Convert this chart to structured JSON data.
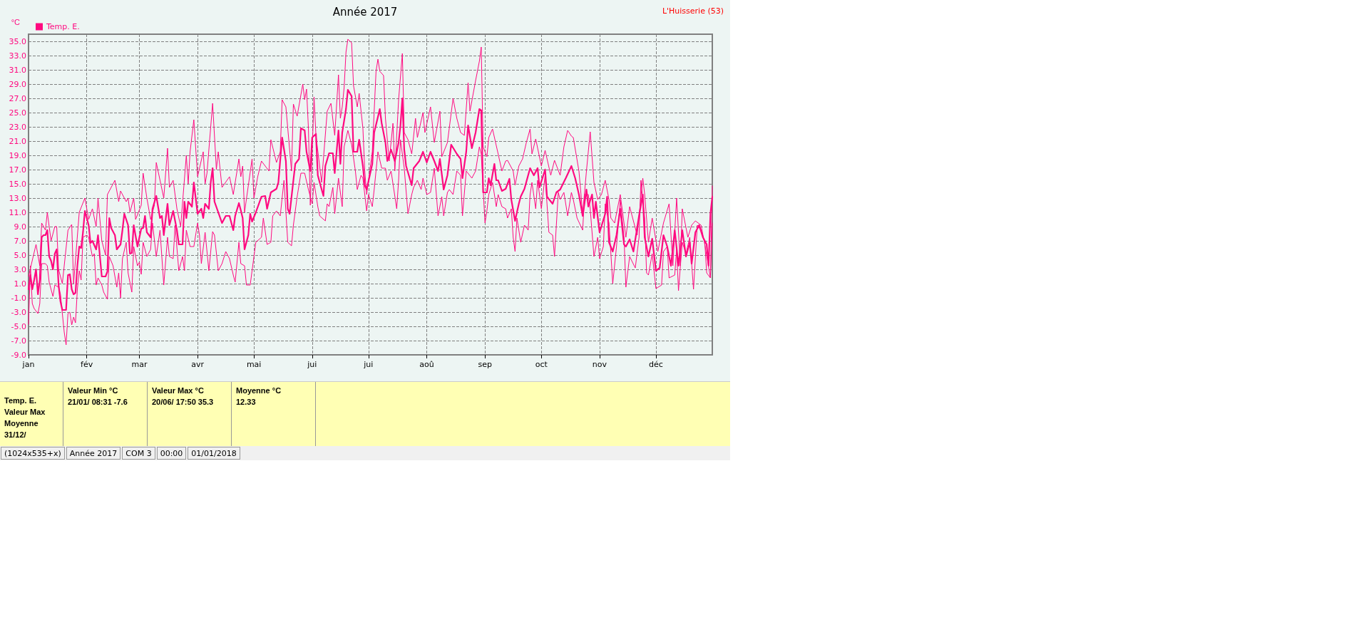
{
  "chart_data": {
    "type": "line",
    "title": "Année 2017",
    "subtitle": "L'Huisserie (53)",
    "ylabel": "°C",
    "xlim": [
      "--01-01",
      "--12-31"
    ],
    "xticks": [
      {
        "value": "--01-01",
        "label": "jan"
      },
      {
        "value": "--02-01",
        "label": "fév"
      },
      {
        "value": "--03-01",
        "label": "mar"
      },
      {
        "value": "--04-01",
        "label": "avr"
      },
      {
        "value": "--05-01",
        "label": "mai"
      },
      {
        "value": "--06-01",
        "label": "jui"
      },
      {
        "value": "--07-01",
        "label": "jui"
      },
      {
        "value": "--08-01",
        "label": "aoû"
      },
      {
        "value": "--09-01",
        "label": "sep"
      },
      {
        "value": "--10-01",
        "label": "oct"
      },
      {
        "value": "--11-01",
        "label": "nov"
      },
      {
        "value": "--12-01",
        "label": "déc"
      }
    ],
    "ylim": [
      -9,
      36
    ],
    "yticks": [
      {
        "value": -9,
        "label": "-9.0"
      },
      {
        "value": -7,
        "label": "-7.0"
      },
      {
        "value": -5,
        "label": "-5.0"
      },
      {
        "value": -3,
        "label": "-3.0"
      },
      {
        "value": -1,
        "label": "-1.0"
      },
      {
        "value": 1,
        "label": "1.0"
      },
      {
        "value": 3,
        "label": "3.0"
      },
      {
        "value": 5,
        "label": "5.0"
      },
      {
        "value": 7,
        "label": "7.0"
      },
      {
        "value": 9,
        "label": "9.0"
      },
      {
        "value": 11,
        "label": "11.0"
      },
      {
        "value": 13,
        "label": "13.0"
      },
      {
        "value": 15,
        "label": "15.0"
      },
      {
        "value": 17,
        "label": "17.0"
      },
      {
        "value": 19,
        "label": "19.0"
      },
      {
        "value": 21,
        "label": "21.0"
      },
      {
        "value": 23,
        "label": "23.0"
      },
      {
        "value": 25,
        "label": "25.0"
      },
      {
        "value": 27,
        "label": "27.0"
      },
      {
        "value": 29,
        "label": "29.0"
      },
      {
        "value": 31,
        "label": "31.0"
      },
      {
        "value": 33,
        "label": "33.0"
      },
      {
        "value": 35,
        "label": "35.0"
      }
    ],
    "grid": true,
    "legend": "top left",
    "marker": "none",
    "line_style": "solid",
    "series": [
      {
        "color": "#ff0a80",
        "x": [
          "--01-01",
          "--01-05",
          "--01-07",
          "--01-08",
          "--01-10",
          "--01-11",
          "--01-13",
          "--01-15",
          "--01-16",
          "--01-17",
          "--01-19",
          "--01-22",
          "--01-24",
          "--01-25",
          "--01-28",
          "--01-31",
          "--02-02",
          "--02-04",
          "--02-06",
          "--02-07",
          "--02-09",
          "--02-11",
          "--02-12",
          "--02-16",
          "--02-18",
          "--02-19",
          "--02-22",
          "--02-23",
          "--02-24",
          "--02-26",
          "--02-27",
          "--03-02",
          "--03-03",
          "--03-05",
          "--03-07",
          "--03-09",
          "--03-10",
          "--03-14",
          "--03-16",
          "--03-17",
          "--03-19",
          "--03-21",
          "--03-23",
          "--03-26",
          "--03-27",
          "--03-28",
          "--03-30",
          "--04-01",
          "--04-04",
          "--04-05",
          "--04-06",
          "--04-09",
          "--04-11",
          "--04-12",
          "--04-14",
          "--04-18",
          "--04-20",
          "--04-23",
          "--04-24",
          "--04-25",
          "--04-26",
          "--04-30",
          "--05-01",
          "--05-03",
          "--05-05",
          "--05-09",
          "--05-10",
          "--05-13",
          "--05-15",
          "--05-16",
          "--05-18",
          "--05-21",
          "--05-22",
          "--05-24",
          "--05-27",
          "--05-28",
          "--05-29",
          "--05-30",
          "--05-31",
          "--06-02",
          "--06-03",
          "--06-06",
          "--06-09",
          "--06-11",
          "--06-13",
          "--06-15",
          "--06-16",
          "--06-17",
          "--06-18",
          "--06-19",
          "--06-20",
          "--06-22",
          "--06-23",
          "--06-25",
          "--06-26",
          "--06-28",
          "--06-29",
          "--06-30",
          "--07-03",
          "--07-05",
          "--07-06",
          "--07-07",
          "--07-09",
          "--07-10",
          "--07-12",
          "--07-14",
          "--07-15",
          "--07-17",
          "--07-19",
          "--07-20",
          "--07-22",
          "--07-24",
          "--07-26",
          "--07-27",
          "--07-30",
          "--07-31",
          "--08-03",
          "--08-05",
          "--08-08",
          "--08-09",
          "--08-12",
          "--08-15",
          "--08-17",
          "--08-19",
          "--08-21",
          "--08-23",
          "--08-24",
          "--08-27",
          "--08-29",
          "--08-30",
          "--08-31",
          "--09-02",
          "--09-03",
          "--09-05",
          "--09-08",
          "--09-10",
          "--09-12",
          "--09-13",
          "--09-16",
          "--09-17",
          "--09-19",
          "--09-21",
          "--09-23",
          "--09-25",
          "--09-26",
          "--09-28",
          "--10-01",
          "--10-03",
          "--10-06",
          "--10-08",
          "--10-11",
          "--10-13",
          "--10-15",
          "--10-17",
          "--10-18",
          "--10-21",
          "--10-23",
          "--10-25",
          "--10-27",
          "--10-29",
          "--10-31",
          "--11-02",
          "--11-04",
          "--11-06",
          "--11-07",
          "--11-09",
          "--11-12",
          "--11-15",
          "--11-17",
          "--11-21",
          "--11-24",
          "--11-25",
          "--11-27",
          "--11-29",
          "--12-02",
          "--12-05",
          "--12-08",
          "--12-10",
          "--12-12",
          "--12-14",
          "--12-15",
          "--12-18",
          "--12-20",
          "--12-22",
          "--12-25",
          "--12-27",
          "--12-30",
          "--12-31"
        ],
        "values": [
          2,
          6.5,
          3.5,
          9.5,
          8.5,
          11,
          7,
          9,
          9,
          3,
          1,
          8.5,
          9.3,
          1,
          11,
          13,
          10,
          11.5,
          9,
          13,
          7,
          5,
          13.5,
          15.5,
          12.5,
          14,
          12.5,
          13,
          11,
          13,
          10,
          12,
          16.5,
          13,
          10,
          12,
          18,
          13,
          20,
          14.5,
          15.5,
          11.5,
          9,
          19,
          15,
          19.5,
          24,
          16,
          19.5,
          15,
          16.5,
          26.3,
          17,
          19.5,
          14.5,
          16,
          13.5,
          18.5,
          16,
          17.5,
          11,
          18.5,
          13,
          16,
          18.2,
          16.8,
          21.2,
          18,
          19.5,
          26.8,
          25.8,
          16.8,
          26.2,
          24.5,
          29,
          26.8,
          28.3,
          22.8,
          12,
          27.2,
          21.8,
          15.2,
          25.2,
          26.3,
          21.8,
          30.3,
          24.2,
          25.8,
          28.5,
          33.5,
          35.3,
          34.8,
          28.8,
          25.8,
          27.7,
          22.8,
          16.8,
          13.5,
          19.5,
          30.8,
          32.5,
          30.8,
          30.2,
          24.2,
          18.2,
          23.5,
          16.8,
          26.8,
          33.3,
          22.2,
          21.2,
          19.2,
          24.2,
          21.5,
          25,
          22.2,
          25.8,
          20.8,
          25.2,
          18.8,
          20.8,
          27,
          24.2,
          22.2,
          21.8,
          29.2,
          25.2,
          29.5,
          32.2,
          34.2,
          20.2,
          18.8,
          21.5,
          22.7,
          19.2,
          16.8,
          18.2,
          18.3,
          16.8,
          14.8,
          17.5,
          18.5,
          20.8,
          22.7,
          19.2,
          21.3,
          17.5,
          19.7,
          16.2,
          18.3,
          16.2,
          20.2,
          22.5,
          21.7,
          21.5,
          16.8,
          10.8,
          16.8,
          22.3,
          15.2,
          12.8,
          13.5,
          15.5,
          12.8,
          10.2,
          9.5,
          13.5,
          7.5,
          11.8,
          7.8,
          15.8,
          13.5,
          6.8,
          10.2,
          5.5,
          9.5,
          12.2,
          3.5,
          13,
          3.5,
          11.5,
          7.5,
          9.2,
          9.8,
          9.2,
          6.5,
          1.8,
          14.7
        ]
      },
      {
        "name": "Temp. E.",
        "color": "#ff0a80",
        "x": [
          "--01-01",
          "--01-02",
          "--01-03",
          "--01-04",
          "--01-05",
          "--01-06",
          "--01-07",
          "--01-08",
          "--01-09",
          "--01-10",
          "--01-11",
          "--01-12",
          "--01-13",
          "--01-14",
          "--01-15",
          "--01-16",
          "--01-17",
          "--01-18",
          "--01-19",
          "--01-21",
          "--01-22",
          "--01-23",
          "--01-24",
          "--01-25",
          "--01-26",
          "--01-27",
          "--01-28",
          "--01-29",
          "--01-30",
          "--01-31",
          "--02-02",
          "--02-03",
          "--02-04",
          "--02-06",
          "--02-07",
          "--02-08",
          "--02-09",
          "--02-11",
          "--02-12",
          "--02-13",
          "--02-14",
          "--02-16",
          "--02-17",
          "--02-19",
          "--02-20",
          "--02-21",
          "--02-23",
          "--02-24",
          "--02-25",
          "--02-26",
          "--02-28",
          "--03-02",
          "--03-03",
          "--03-04",
          "--03-05",
          "--03-07",
          "--03-08",
          "--03-10",
          "--03-12",
          "--03-13",
          "--03-14",
          "--03-16",
          "--03-17",
          "--03-19",
          "--03-21",
          "--03-22",
          "--03-24",
          "--03-25",
          "--03-26",
          "--03-27",
          "--03-29",
          "--03-30",
          "--04-01",
          "--04-03",
          "--04-04",
          "--04-05",
          "--04-07",
          "--04-08",
          "--04-09",
          "--04-10",
          "--04-12",
          "--04-14",
          "--04-16",
          "--04-18",
          "--04-20",
          "--04-21",
          "--04-23",
          "--04-24",
          "--04-25",
          "--04-26",
          "--04-28",
          "--04-29",
          "--04-30",
          "--05-02",
          "--05-05",
          "--05-07",
          "--05-08",
          "--05-10",
          "--05-13",
          "--05-14",
          "--05-16",
          "--05-18",
          "--05-19",
          "--05-20",
          "--05-22",
          "--05-23",
          "--05-25",
          "--05-26",
          "--05-28",
          "--05-29",
          "--05-31",
          "--06-01",
          "--06-03",
          "--06-04",
          "--06-05",
          "--06-07",
          "--06-08",
          "--06-10",
          "--06-12",
          "--06-13",
          "--06-14",
          "--06-15",
          "--06-16",
          "--06-17",
          "--06-19",
          "--06-20",
          "--06-22",
          "--06-23",
          "--06-25",
          "--06-26",
          "--06-28",
          "--06-29",
          "--06-30",
          "--07-03",
          "--07-04",
          "--07-07",
          "--07-08",
          "--07-10",
          "--07-11",
          "--07-13",
          "--07-15",
          "--07-17",
          "--07-18",
          "--07-19",
          "--07-20",
          "--07-21",
          "--07-24",
          "--07-25",
          "--07-28",
          "--07-30",
          "--08-01",
          "--08-03",
          "--08-05",
          "--08-07",
          "--08-08",
          "--08-10",
          "--08-12",
          "--08-14",
          "--08-17",
          "--08-19",
          "--08-20",
          "--08-22",
          "--08-23",
          "--08-25",
          "--08-27",
          "--08-29",
          "--08-30",
          "--08-31",
          "--09-02",
          "--09-03",
          "--09-04",
          "--09-06",
          "--09-07",
          "--09-08",
          "--09-10",
          "--09-12",
          "--09-14",
          "--09-15",
          "--09-17",
          "--09-19",
          "--09-20",
          "--09-22",
          "--09-25",
          "--09-27",
          "--09-29",
          "--09-30",
          "--10-03",
          "--10-04",
          "--10-07",
          "--10-09",
          "--10-11",
          "--10-14",
          "--10-17",
          "--10-19",
          "--10-21",
          "--10-23",
          "--10-25",
          "--10-26",
          "--10-28",
          "--10-29",
          "--10-30",
          "--11-01",
          "--11-04",
          "--11-05",
          "--11-06",
          "--11-08",
          "--11-10",
          "--11-12",
          "--11-14",
          "--11-15",
          "--11-17",
          "--11-19",
          "--11-22",
          "--11-24",
          "--11-25",
          "--11-27",
          "--11-29",
          "--12-01",
          "--12-03",
          "--12-05",
          "--12-07",
          "--12-09",
          "--12-11",
          "--12-13",
          "--12-15",
          "--12-17",
          "--12-19",
          "--12-20",
          "--12-22",
          "--12-24",
          "--12-26",
          "--12-28",
          "--12-29",
          "--12-30",
          "--12-31"
        ],
        "values": [
          0.2,
          2.2,
          0.2,
          1.5,
          3,
          -0.5,
          1.5,
          7.5,
          7.8,
          7.8,
          8.5,
          4.8,
          4.2,
          3,
          5.2,
          5.8,
          0.8,
          -1.5,
          -2.7,
          -2.7,
          2.2,
          2.3,
          0.2,
          -0.5,
          -0.3,
          3.5,
          6.2,
          6,
          8.2,
          11.2,
          9.2,
          6.7,
          7,
          5.8,
          7.8,
          4.8,
          2,
          2,
          2.7,
          10.2,
          8.8,
          7.8,
          5.8,
          6.5,
          8.5,
          10.8,
          9.2,
          5.2,
          5.3,
          9.2,
          6.2,
          8.7,
          8.8,
          10.5,
          8.2,
          7.5,
          11.5,
          13.3,
          10.2,
          10.5,
          7.8,
          12.2,
          9.2,
          11.2,
          8.5,
          6.5,
          6.5,
          12.5,
          10.2,
          12.5,
          11.8,
          15.2,
          10.8,
          11.5,
          10.2,
          12.2,
          11.5,
          15.2,
          17.2,
          12.5,
          11,
          9.5,
          10.5,
          10.5,
          8.5,
          10.5,
          12.3,
          11.3,
          10.2,
          5.8,
          7.8,
          10.8,
          9.7,
          11,
          13.2,
          13.3,
          11.5,
          13.8,
          14.3,
          15.2,
          21.5,
          18.2,
          11.5,
          10.8,
          15.5,
          17.8,
          18.5,
          22.8,
          22.5,
          19.5,
          16.8,
          21.5,
          22,
          16.2,
          15.2,
          13.3,
          17.5,
          19.3,
          19.3,
          16.5,
          19.5,
          22.5,
          17.8,
          22.2,
          25.5,
          28.2,
          27.3,
          19.5,
          19.5,
          21.2,
          17.5,
          14.8,
          14.2,
          17.8,
          22.2,
          25.5,
          23.5,
          20.8,
          18.2,
          19.8,
          18.2,
          20.8,
          23.2,
          27,
          19.8,
          17.5,
          14.8,
          17.2,
          18.2,
          19.5,
          18,
          19.5,
          18.2,
          16.8,
          18.5,
          14.2,
          16.2,
          20.5,
          19.2,
          18.5,
          15.8,
          19.5,
          23.2,
          20,
          22.2,
          25.5,
          25.3,
          13.8,
          13.8,
          15.8,
          14.8,
          17.8,
          15.5,
          15.5,
          14,
          14.3,
          15.7,
          12.8,
          9.8,
          12.2,
          13.2,
          14.3,
          17.2,
          16.2,
          17.2,
          14.5,
          17,
          13.2,
          12.2,
          13.8,
          14.2,
          15.8,
          17.5,
          15.8,
          13.5,
          10.5,
          14.2,
          11.8,
          13.5,
          10.2,
          12.5,
          8.2,
          10.8,
          13.2,
          6.8,
          5.5,
          7.8,
          11.5,
          6.5,
          6.2,
          7.2,
          5.5,
          10.5,
          13.5,
          7.5,
          4.8,
          7.3,
          2.8,
          3.2,
          7.8,
          6.2,
          3.5,
          8.5,
          3.5,
          8.5,
          4.8,
          6.8,
          3.8,
          8.2,
          9.2,
          7.5,
          6.5,
          3.5,
          10.8,
          13.2
        ]
      },
      {
        "color": "#ff0a80",
        "x": [
          "--01-01",
          "--01-02",
          "--01-03",
          "--01-04",
          "--01-06",
          "--01-07",
          "--01-08",
          "--01-10",
          "--01-11",
          "--01-12",
          "--01-14",
          "--01-15",
          "--01-17",
          "--01-18",
          "--01-19",
          "--01-20",
          "--01-21",
          "--01-22",
          "--01-23",
          "--01-24",
          "--01-25",
          "--01-26",
          "--01-27",
          "--01-28",
          "--01-29",
          "--01-30",
          "--02-01",
          "--02-02",
          "--02-04",
          "--02-05",
          "--02-06",
          "--02-07",
          "--02-09",
          "--02-10",
          "--02-12",
          "--02-13",
          "--02-15",
          "--02-17",
          "--02-18",
          "--02-19",
          "--02-20",
          "--02-22",
          "--02-23",
          "--02-25",
          "--02-26",
          "--02-28",
          "--03-01",
          "--03-02",
          "--03-03",
          "--03-05",
          "--03-07",
          "--03-08",
          "--03-10",
          "--03-12",
          "--03-14",
          "--03-16",
          "--03-17",
          "--03-19",
          "--03-20",
          "--03-22",
          "--03-24",
          "--03-25",
          "--03-26",
          "--03-28",
          "--03-30",
          "--04-01",
          "--04-02",
          "--04-03",
          "--04-05",
          "--04-07",
          "--04-09",
          "--04-10",
          "--04-12",
          "--04-14",
          "--04-16",
          "--04-18",
          "--04-20",
          "--04-21",
          "--04-23",
          "--04-24",
          "--04-26",
          "--04-27",
          "--04-29",
          "--04-30",
          "--05-02",
          "--05-05",
          "--05-06",
          "--05-08",
          "--05-10",
          "--05-11",
          "--05-13",
          "--05-15",
          "--05-17",
          "--05-19",
          "--05-21",
          "--05-22",
          "--05-24",
          "--05-26",
          "--05-28",
          "--05-30",
          "--06-01",
          "--06-02",
          "--06-04",
          "--06-05",
          "--06-08",
          "--06-09",
          "--06-10",
          "--06-12",
          "--06-13",
          "--06-15",
          "--06-17",
          "--06-18",
          "--06-20",
          "--06-22",
          "--06-24",
          "--06-25",
          "--06-27",
          "--06-28",
          "--06-30",
          "--07-01",
          "--07-03",
          "--07-04",
          "--07-06",
          "--07-08",
          "--07-10",
          "--07-11",
          "--07-13",
          "--07-16",
          "--07-17",
          "--07-18",
          "--07-20",
          "--07-22",
          "--07-24",
          "--07-25",
          "--07-27",
          "--07-29",
          "--07-30",
          "--08-01",
          "--08-03",
          "--08-05",
          "--08-07",
          "--08-09",
          "--08-10",
          "--08-12",
          "--08-13",
          "--08-15",
          "--08-17",
          "--08-19",
          "--08-20",
          "--08-22",
          "--08-25",
          "--08-27",
          "--08-29",
          "--08-30",
          "--09-01",
          "--09-02",
          "--09-03",
          "--09-05",
          "--09-07",
          "--09-08",
          "--09-10",
          "--09-12",
          "--09-13",
          "--09-15",
          "--09-16",
          "--09-17",
          "--09-18",
          "--09-20",
          "--09-22",
          "--09-24",
          "--09-25",
          "--09-26",
          "--09-28",
          "--09-29",
          "--10-01",
          "--10-03",
          "--10-05",
          "--10-07",
          "--10-08",
          "--10-10",
          "--10-11",
          "--10-13",
          "--10-15",
          "--10-17",
          "--10-18",
          "--10-20",
          "--10-23",
          "--10-24",
          "--10-26",
          "--10-27",
          "--10-29",
          "--10-31",
          "--11-01",
          "--11-03",
          "--11-04",
          "--11-06",
          "--11-08",
          "--11-10",
          "--11-12",
          "--11-14",
          "--11-15",
          "--11-17",
          "--11-20",
          "--11-22",
          "--11-23",
          "--11-25",
          "--11-26",
          "--11-27",
          "--11-29",
          "--12-01",
          "--12-04",
          "--12-05",
          "--12-07",
          "--12-08",
          "--12-11",
          "--12-12",
          "--12-13",
          "--12-15",
          "--12-17",
          "--12-19",
          "--12-21",
          "--12-23",
          "--12-25",
          "--12-27",
          "--12-28",
          "--12-30",
          "--12-31"
        ],
        "values": [
          -4.7,
          3.5,
          -1.8,
          -2.5,
          -3.2,
          -1.8,
          3.8,
          3.8,
          3.5,
          1.2,
          -0.8,
          0.8,
          0.5,
          -0.5,
          -3.2,
          -5.8,
          -7.6,
          -3.2,
          -3,
          -4.8,
          -3.7,
          -4.5,
          0.2,
          2.8,
          1.5,
          7.5,
          7.8,
          7.5,
          4.8,
          5.2,
          0.8,
          1.8,
          0.8,
          -0.2,
          -1.2,
          4.8,
          3.5,
          0.5,
          2.5,
          -1,
          4.5,
          6.8,
          2.5,
          -0.2,
          6.2,
          3.5,
          4,
          2.3,
          6.8,
          4.8,
          5.8,
          9.5,
          4.8,
          8.5,
          0.8,
          7.5,
          4.8,
          4.5,
          9.2,
          2.8,
          4.8,
          2.8,
          8.5,
          6.2,
          6.2,
          9.5,
          7.8,
          3.8,
          8.2,
          2.8,
          8.3,
          7.8,
          2.8,
          3.8,
          5.5,
          4.5,
          2.2,
          1.2,
          6.8,
          3.8,
          3.5,
          0.8,
          0.8,
          2.8,
          6.8,
          7.5,
          10.2,
          6.5,
          6.8,
          10.5,
          11.2,
          10.5,
          15.5,
          6.8,
          6.3,
          9.2,
          13.2,
          16.5,
          16.5,
          14.2,
          12.2,
          15.2,
          11.8,
          10.5,
          9.8,
          12.2,
          11.8,
          14.5,
          10.8,
          15.8,
          11.8,
          20.2,
          22.5,
          20.5,
          16.8,
          14.2,
          16.2,
          15.8,
          11.2,
          13.5,
          11.8,
          14.2,
          19.5,
          17.2,
          17.2,
          15.5,
          16.8,
          11.5,
          15.5,
          21.2,
          17.2,
          10.8,
          13.5,
          14.5,
          15.5,
          14.2,
          15.8,
          13.5,
          13.8,
          17.2,
          10.5,
          13.2,
          10.5,
          13.8,
          14.2,
          13.5,
          16.8,
          16.2,
          10.5,
          16.8,
          15.8,
          16.8,
          20.2,
          19.2,
          9.5,
          11.2,
          13.5,
          15.2,
          11.8,
          13.5,
          11.8,
          11.5,
          10.2,
          11.5,
          7.5,
          5.5,
          10.2,
          6.8,
          9.2,
          8.5,
          13.5,
          15.2,
          11.5,
          15.5,
          11.5,
          16.2,
          8.2,
          7.8,
          4.8,
          13.8,
          12.8,
          13.8,
          10.5,
          13.8,
          12.8,
          10.2,
          8.5,
          13.5,
          13.5,
          11.5,
          4.8,
          7.5,
          4.5,
          6.2,
          12.2,
          9.5,
          1,
          6.2,
          12.8,
          7.5,
          0.5,
          4.8,
          3.2,
          7.5,
          15.5,
          10.2,
          2.5,
          2.2,
          5.2,
          0.3,
          0.8,
          5.5,
          6.2,
          1.8,
          2.2,
          5.8,
          0,
          6.8,
          5.2,
          7.5,
          0.2,
          9.2,
          8.5,
          6.8,
          2.5,
          1.8,
          9.5
        ]
      }
    ],
    "annotations": [
      "Temp. E.\nValeur Max\nMoyenne\n31/12/",
      "Valeur Min °C\n21/01/  08:31  -7.6",
      "Valeur Max °C\n20/06/  17:50  35.3",
      "Moyenne °C\n12.33",
      "(1024x535+x)",
      "Année 2017",
      "COM 3",
      "00:00",
      "01/01/2018"
    ]
  }
}
